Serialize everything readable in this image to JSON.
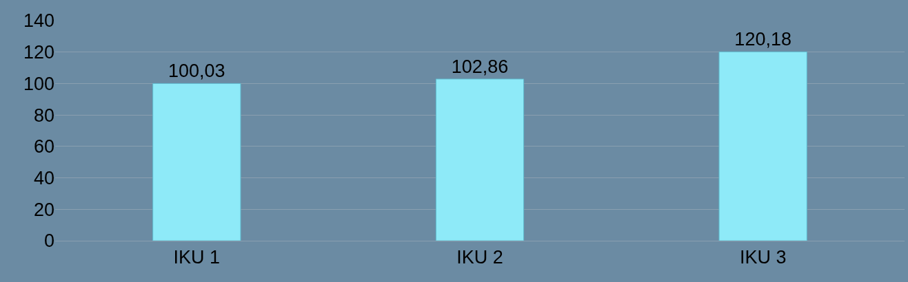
{
  "chart_data": {
    "type": "bar",
    "categories": [
      "IKU 1",
      "IKU 2",
      "IKU 3"
    ],
    "values": [
      100.03,
      102.86,
      120.18
    ],
    "value_labels": [
      "100,03",
      "102,86",
      "120,18"
    ],
    "color": "#8eeaf8",
    "ylim": [
      0,
      140
    ],
    "yticks": [
      0,
      20,
      40,
      60,
      80,
      100,
      120,
      140
    ],
    "grid": "y",
    "legend": false
  }
}
